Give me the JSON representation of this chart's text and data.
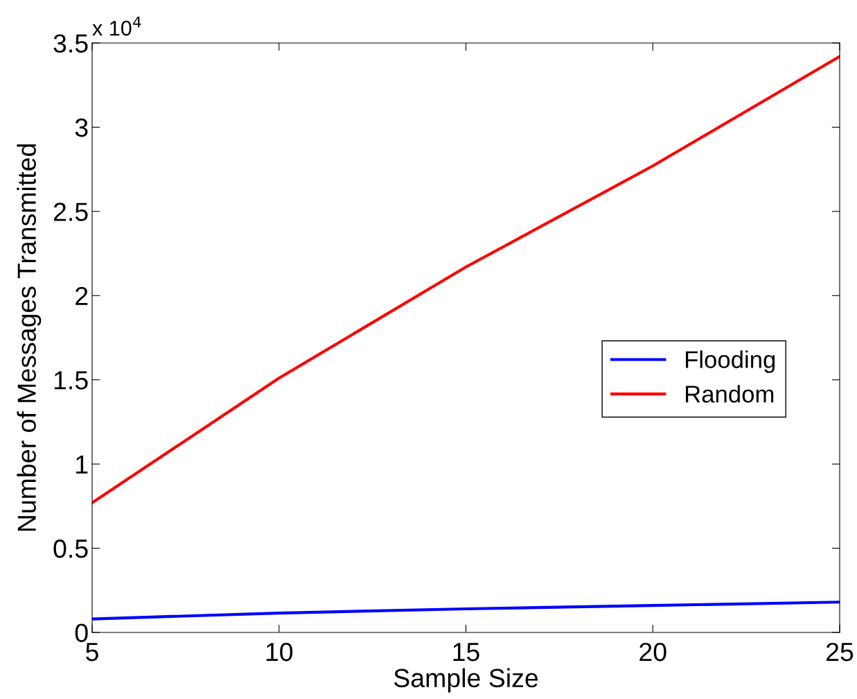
{
  "chart_data": {
    "type": "line",
    "xlabel": "Sample Size",
    "ylabel": "Number of Messages Transmitted",
    "x": [
      5,
      10,
      15,
      20,
      25
    ],
    "series": [
      {
        "name": "Flooding",
        "color": "#0000ff",
        "values": [
          0.08,
          0.115,
          0.14,
          0.16,
          0.18
        ]
      },
      {
        "name": "Random",
        "color": "#ff0000",
        "values": [
          0.77,
          1.51,
          2.17,
          2.77,
          3.42
        ]
      }
    ],
    "xlim": [
      5,
      25
    ],
    "xticks": [
      5,
      10,
      15,
      20,
      25
    ],
    "ylim": [
      0,
      3.5
    ],
    "yticks": [
      0,
      0.5,
      1,
      1.5,
      2,
      2.5,
      3,
      3.5
    ],
    "annotations": [
      "x 10$^{4}$"
    ],
    "legend": "right",
    "grid": false,
    "line_style": "solid",
    "marker": "none"
  }
}
